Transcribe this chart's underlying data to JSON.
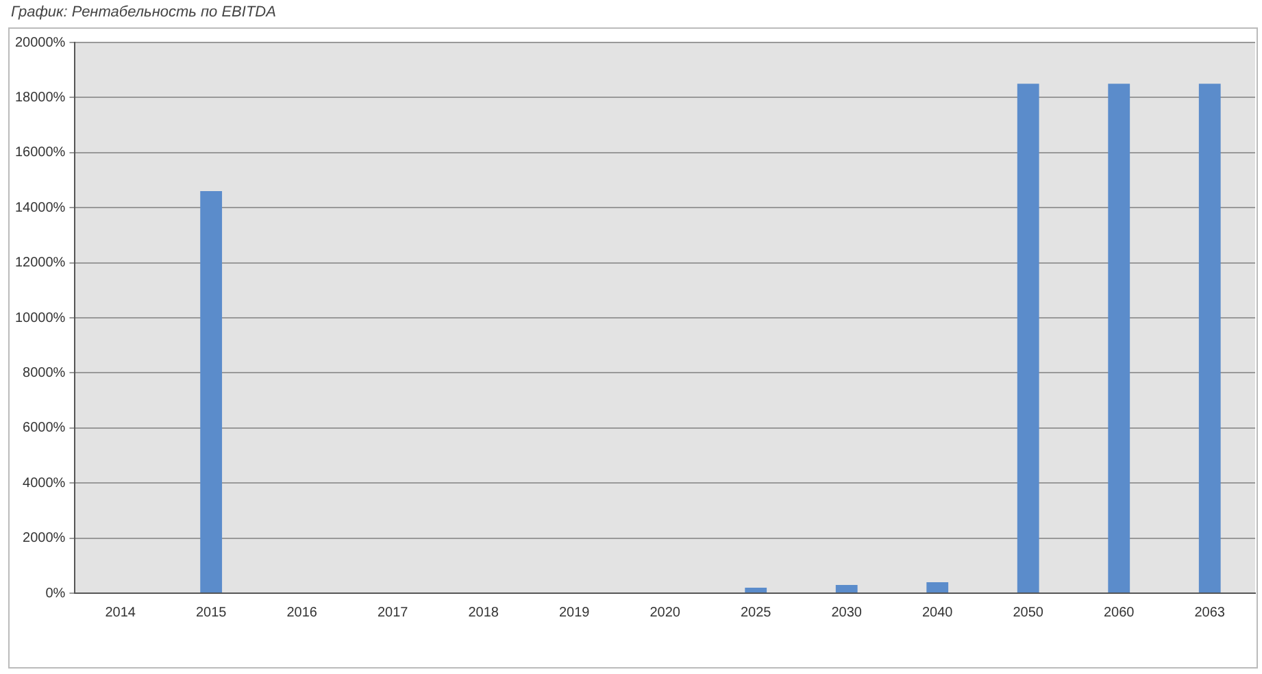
{
  "chart_data": {
    "type": "bar",
    "title": "График: Рентабельность по EBITDA",
    "categories": [
      "2014",
      "2015",
      "2016",
      "2017",
      "2018",
      "2019",
      "2020",
      "2025",
      "2030",
      "2040",
      "2050",
      "2060",
      "2063"
    ],
    "values": [
      0,
      14600,
      0,
      0,
      0,
      0,
      0,
      200,
      300,
      400,
      18500,
      18500,
      18500
    ],
    "color": "#5b8ccb",
    "ylim": [
      0,
      20000
    ],
    "yticks": [
      {
        "value": 0,
        "label": "0%"
      },
      {
        "value": 2000,
        "label": "2000%"
      },
      {
        "value": 4000,
        "label": "4000%"
      },
      {
        "value": 6000,
        "label": "6000%"
      },
      {
        "value": 8000,
        "label": "8000%"
      },
      {
        "value": 10000,
        "label": "10000%"
      },
      {
        "value": 12000,
        "label": "12000%"
      },
      {
        "value": 14000,
        "label": "14000%"
      },
      {
        "value": 16000,
        "label": "16000%"
      },
      {
        "value": 18000,
        "label": "18000%"
      },
      {
        "value": 20000,
        "label": "20000%"
      }
    ],
    "grid": "y"
  }
}
